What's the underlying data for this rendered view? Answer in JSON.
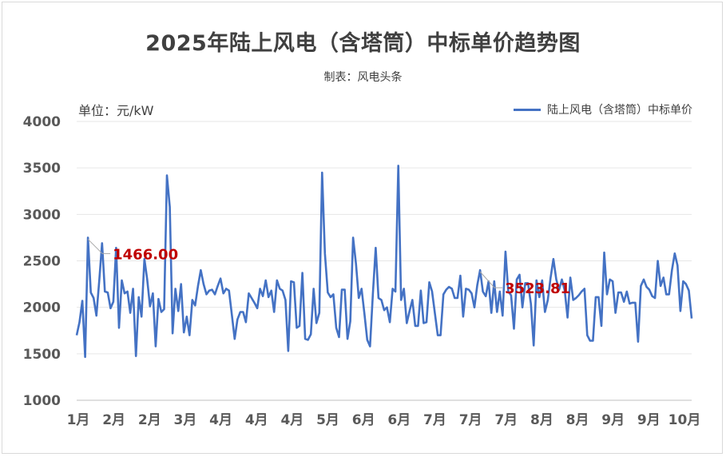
{
  "chart_data": {
    "type": "line",
    "title": "2025年陆上风电（含塔筒）中标单价趋势图",
    "subtitle": "制表：风电头条",
    "unit_label": "单位：元/kW",
    "ylim": [
      1000,
      4000
    ],
    "y_ticks": [
      "1000",
      "1500",
      "2000",
      "2500",
      "3000",
      "3500",
      "4000"
    ],
    "x_ticks": [
      "1月",
      "2月",
      "2月",
      "3月",
      "4月",
      "4月",
      "4月",
      "5月",
      "6月",
      "6月",
      "7月",
      "7月",
      "7月",
      "8月",
      "8月",
      "9月",
      "9月",
      "10月"
    ],
    "legend_position": "top-right",
    "grid": true,
    "color": "#4472c4",
    "annotations": [
      {
        "label": "1466.00",
        "index": 4
      },
      {
        "label": "3523.81",
        "index": 143
      }
    ],
    "series": [
      {
        "name": "陆上风电（含塔筒）中标单价",
        "values": [
          1700,
          1840,
          2070,
          1466,
          2750,
          2160,
          2100,
          1910,
          2290,
          2690,
          2170,
          2160,
          1990,
          2060,
          2640,
          1780,
          2290,
          2150,
          2170,
          1940,
          2200,
          1475,
          2110,
          1900,
          2520,
          2300,
          2010,
          2150,
          1580,
          2090,
          1950,
          1980,
          3420,
          3080,
          1720,
          2200,
          1960,
          2250,
          1730,
          1900,
          1700,
          2080,
          2020,
          2230,
          2400,
          2250,
          2140,
          2180,
          2190,
          2140,
          2230,
          2310,
          2150,
          2200,
          2180,
          1920,
          1660,
          1870,
          1950,
          1950,
          1840,
          2150,
          2100,
          2050,
          1990,
          2200,
          2120,
          2290,
          2110,
          2180,
          1950,
          2290,
          2200,
          2180,
          2080,
          1530,
          2280,
          2270,
          1780,
          1800,
          2370,
          1660,
          1650,
          1710,
          2200,
          1830,
          1940,
          3450,
          2580,
          2160,
          2110,
          2140,
          1780,
          1680,
          2190,
          2190,
          1660,
          1850,
          2750,
          2470,
          2100,
          2200,
          1930,
          1650,
          1580,
          2150,
          2640,
          2100,
          2080,
          1970,
          2000,
          1840,
          2200,
          2170,
          3523.81,
          2080,
          2200,
          1830,
          1960,
          2080,
          1800,
          1800,
          2180,
          1830,
          1840,
          2270,
          2170,
          1930,
          1700,
          1700,
          2140,
          2190,
          2220,
          2200,
          2100,
          2100,
          2340,
          1900,
          2200,
          2190,
          2150,
          2000,
          2240,
          2400,
          2170,
          2120,
          2280,
          1940,
          2280,
          1950,
          2170,
          1910,
          2600,
          2170,
          2130,
          1770,
          2300,
          2350,
          2000,
          2260,
          2260,
          2040,
          1590,
          2290,
          2110,
          2290,
          1950,
          2080,
          2320,
          2520,
          2300,
          2190,
          2300,
          2180,
          1890,
          2320,
          2080,
          2100,
          2130,
          2170,
          2200,
          1700,
          1640,
          1640,
          2110,
          2110,
          1800,
          2590,
          2140,
          2300,
          2280,
          1940,
          2160,
          2160,
          2060,
          2170,
          2040,
          2050,
          2050,
          1630,
          2230,
          2300,
          2220,
          2190,
          2120,
          2100,
          2500,
          2230,
          2320,
          2140,
          2140,
          2400,
          2580,
          2450,
          1960,
          2280,
          2250,
          2180,
          1880
        ]
      }
    ]
  }
}
